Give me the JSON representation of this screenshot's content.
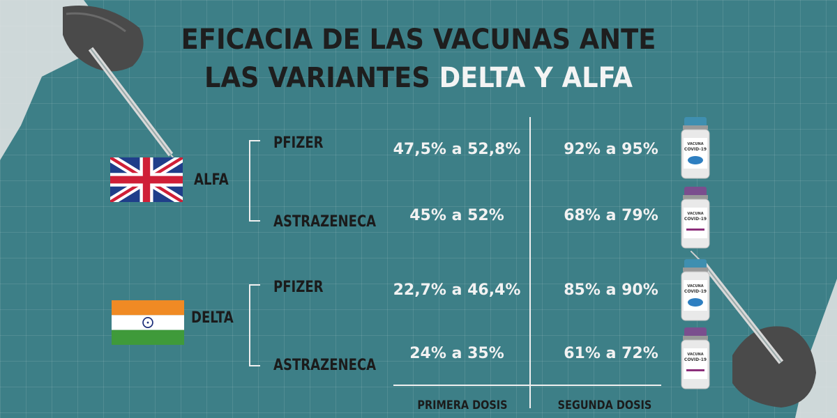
{
  "title": {
    "line1": "EFICACIA DE LAS VACUNAS ANTE",
    "line2_dark": "LAS VARIANTES ",
    "line2_highlight": "DELTA Y ALFA"
  },
  "variants": [
    {
      "name": "ALFA",
      "flag": "uk-flag"
    },
    {
      "name": "DELTA",
      "flag": "india-flag"
    }
  ],
  "rows": [
    {
      "brand": "PFIZER",
      "first": "47,5% a 52,8%",
      "second": "92% a 95%",
      "vial_text": "VACUNA COVID-19",
      "vial_cap": "#3f8fb0"
    },
    {
      "brand": "ASTRAZENECA",
      "first": "45% a 52%",
      "second": "68% a 79%",
      "vial_text": "VACUNA COVID-19",
      "vial_cap": "#7a4e8e"
    },
    {
      "brand": "PFIZER",
      "first": "22,7% a 46,4%",
      "second": "85% a 90%",
      "vial_text": "VACUNA COVID-19",
      "vial_cap": "#3f8fb0"
    },
    {
      "brand": "ASTRAZENECA",
      "first": "24% a 35%",
      "second": "61% a 72%",
      "vial_text": "VACUNA COVID-19",
      "vial_cap": "#7a4e8e"
    }
  ],
  "columns": {
    "first": "PRIMERA DOSIS",
    "second": "SEGUNDA DOSIS"
  },
  "colors": {
    "background": "#3d7f87",
    "title_dark": "#1e1e1e",
    "title_highlight": "#f4f4f4",
    "values": "#f2f2f2"
  }
}
